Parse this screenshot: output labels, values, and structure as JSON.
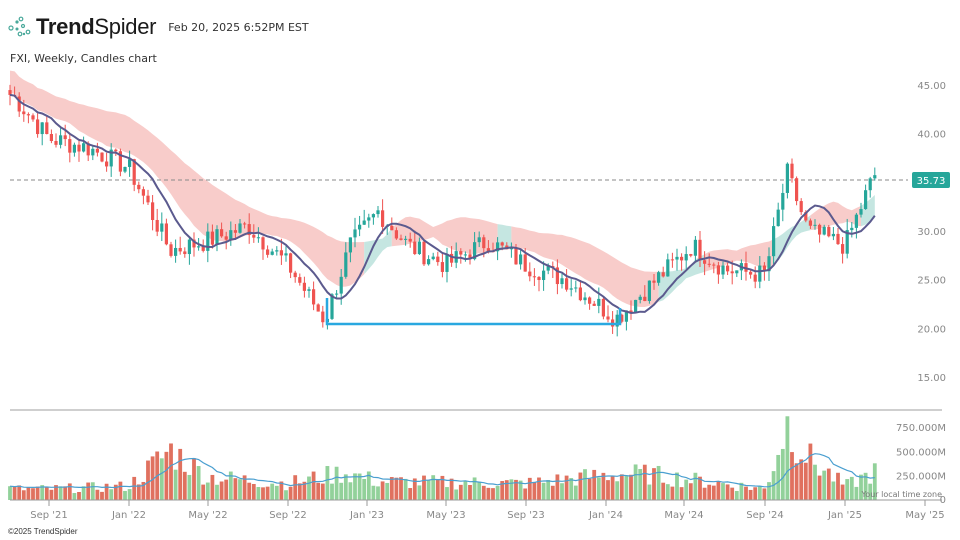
{
  "header": {
    "brand_bold": "Trend",
    "brand_light": "Spider",
    "timestamp": "Feb 20, 2025 6:52PM EST",
    "subtitle": "FXI, Weekly, Candles chart"
  },
  "footer": {
    "copyright": "©2025 TrendSpider",
    "timezone_note": "Your local time zone"
  },
  "colors": {
    "up": "#26a69a",
    "down": "#ef5350",
    "vol_up": "#92d19a",
    "vol_down": "#e0715f",
    "ma_line": "#5b5a8e",
    "vol_ma_line": "#4a9fd0",
    "cloud_bear": "#f7c6c4",
    "cloud_bull": "#bfe3de",
    "support_line": "#29a8e0",
    "price_tag": "#26a69a"
  },
  "chart_data": {
    "type": "candlestick",
    "title": "FXI, Weekly, Candles chart",
    "symbol": "FXI",
    "timeframe": "Weekly",
    "last_price": 35.73,
    "price_axis": {
      "ticks": [
        "45.00",
        "40.00",
        "35.00",
        "30.00",
        "25.00",
        "20.00",
        "15.00"
      ],
      "ylim": [
        13,
        47
      ]
    },
    "volume_axis": {
      "ticks": [
        "750.000M",
        "500.000M",
        "250.000M",
        "0"
      ],
      "ylim": [
        0,
        800
      ]
    },
    "x_ticks": [
      "Sep '21",
      "Jan '22",
      "May '22",
      "Sep '22",
      "Jan '23",
      "May '23",
      "Sep '23",
      "Jan '24",
      "May '24",
      "Sep '24",
      "Jan '25",
      "May '25"
    ],
    "support_line": {
      "price": 20.5,
      "from": "Oct '22",
      "to": "Jan '24"
    },
    "indicators": [
      "Moving average (purple line)",
      "Cloud band (red bearish / teal bullish)",
      "Volume with moving average"
    ],
    "approx_close_path": [
      {
        "date": "Jul '21",
        "close": 44.0
      },
      {
        "date": "Sep '21",
        "close": 39.5
      },
      {
        "date": "Nov '21",
        "close": 38.5
      },
      {
        "date": "Jan '22",
        "close": 36.5
      },
      {
        "date": "Mar '22",
        "close": 28.0
      },
      {
        "date": "May '22",
        "close": 29.0
      },
      {
        "date": "Jul '22",
        "close": 30.5
      },
      {
        "date": "Sep '22",
        "close": 26.5
      },
      {
        "date": "Oct '22",
        "close": 20.8
      },
      {
        "date": "Dec '22",
        "close": 28.5
      },
      {
        "date": "Jan '23",
        "close": 32.0
      },
      {
        "date": "Mar '23",
        "close": 28.5
      },
      {
        "date": "May '23",
        "close": 26.5
      },
      {
        "date": "Jul '23",
        "close": 29.0
      },
      {
        "date": "Sep '23",
        "close": 26.5
      },
      {
        "date": "Nov '23",
        "close": 25.0
      },
      {
        "date": "Jan '24",
        "close": 21.0
      },
      {
        "date": "Mar '24",
        "close": 24.0
      },
      {
        "date": "May '24",
        "close": 28.5
      },
      {
        "date": "Jul '24",
        "close": 26.0
      },
      {
        "date": "Sep '24",
        "close": 25.5
      },
      {
        "date": "Oct '24",
        "close": 36.0
      },
      {
        "date": "Nov '24",
        "close": 30.0
      },
      {
        "date": "Jan '25",
        "close": 28.5
      },
      {
        "date": "Feb '25",
        "close": 35.73
      }
    ],
    "approx_volume_path_M": [
      {
        "date": "Sep '21",
        "value": 120
      },
      {
        "date": "Jan '22",
        "value": 150
      },
      {
        "date": "Mar '22",
        "value": 540
      },
      {
        "date": "May '22",
        "value": 250
      },
      {
        "date": "Sep '22",
        "value": 180
      },
      {
        "date": "Nov '22",
        "value": 300
      },
      {
        "date": "Jan '23",
        "value": 200
      },
      {
        "date": "Sep '23",
        "value": 180
      },
      {
        "date": "Jan '24",
        "value": 280
      },
      {
        "date": "Mar '24",
        "value": 280
      },
      {
        "date": "Sep '24",
        "value": 120
      },
      {
        "date": "Oct '24",
        "value": 830
      },
      {
        "date": "Nov '24",
        "value": 460
      },
      {
        "date": "Jan '25",
        "value": 150
      },
      {
        "date": "Feb '25",
        "value": 300
      }
    ]
  }
}
